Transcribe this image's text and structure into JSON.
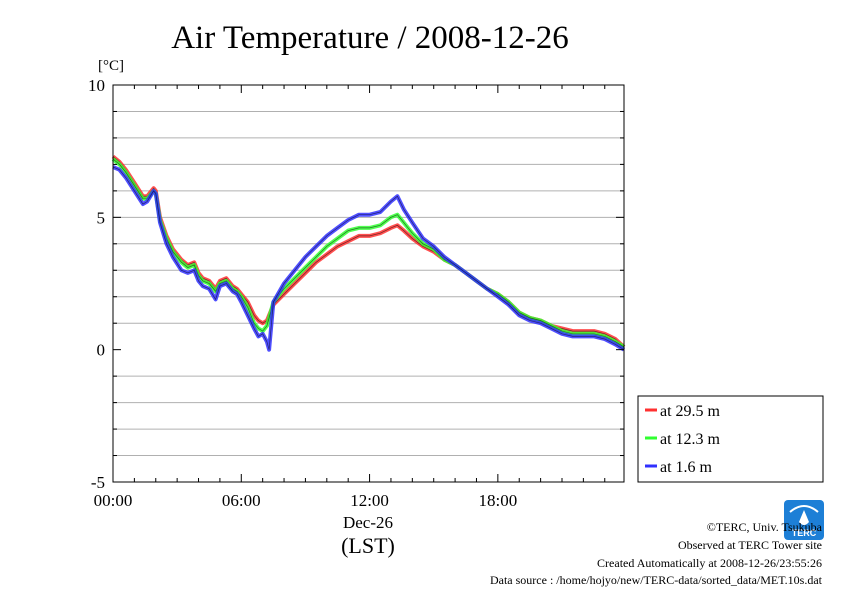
{
  "chart_data": {
    "type": "line",
    "title": "Air Temperature / 2008-12-26",
    "ylabel": "[°C]",
    "xlabel_date": "Dec-26",
    "xlabel_tz": "(LST)",
    "xlim_hours": [
      0,
      23.9
    ],
    "ylim": [
      -5,
      10
    ],
    "y_ticks": [
      10,
      5,
      0,
      -5
    ],
    "y_tick_labels": [
      "10",
      "5",
      "0",
      "-5"
    ],
    "x_ticks": [
      0,
      6,
      12,
      18
    ],
    "x_tick_labels": [
      "00:00",
      "06:00",
      "12:00",
      "18:00"
    ],
    "y_gridlines": [
      -4,
      -3,
      -2,
      -1,
      1,
      2,
      3,
      4,
      5,
      6,
      7,
      8,
      9
    ],
    "legend_position": "right-bottom",
    "series": [
      {
        "name": "at 29.5 m",
        "color": "#ff3030",
        "x": [
          0,
          0.3,
          0.6,
          1.0,
          1.4,
          1.6,
          1.9,
          2.0,
          2.2,
          2.5,
          2.8,
          3.2,
          3.5,
          3.8,
          4.0,
          4.2,
          4.5,
          4.8,
          5.0,
          5.3,
          5.6,
          5.8,
          6.0,
          6.3,
          6.6,
          6.8,
          7.0,
          7.2,
          7.3,
          7.5,
          8.0,
          8.5,
          9.0,
          9.5,
          10.0,
          10.5,
          11.0,
          11.5,
          12.0,
          12.5,
          13.0,
          13.3,
          13.6,
          14.0,
          14.5,
          15.0,
          15.5,
          16.0,
          16.5,
          17.0,
          17.5,
          18.0,
          18.5,
          19.0,
          19.5,
          20.0,
          20.5,
          21.0,
          21.5,
          22.0,
          22.5,
          23.0,
          23.5,
          23.9
        ],
        "y": [
          7.3,
          7.1,
          6.8,
          6.3,
          5.8,
          5.8,
          6.1,
          6.0,
          5.0,
          4.3,
          3.8,
          3.4,
          3.2,
          3.3,
          2.9,
          2.7,
          2.6,
          2.3,
          2.6,
          2.7,
          2.4,
          2.3,
          2.1,
          1.8,
          1.3,
          1.1,
          1.0,
          1.1,
          1.3,
          1.7,
          2.1,
          2.5,
          2.9,
          3.3,
          3.6,
          3.9,
          4.1,
          4.3,
          4.3,
          4.4,
          4.6,
          4.7,
          4.5,
          4.2,
          3.9,
          3.7,
          3.4,
          3.2,
          2.9,
          2.6,
          2.3,
          2.1,
          1.8,
          1.4,
          1.2,
          1.1,
          0.9,
          0.8,
          0.7,
          0.7,
          0.7,
          0.6,
          0.4,
          0.1
        ]
      },
      {
        "name": "at 12.3 m",
        "color": "#30ff30",
        "x": [
          0,
          0.3,
          0.6,
          1.0,
          1.4,
          1.6,
          1.9,
          2.0,
          2.2,
          2.5,
          2.8,
          3.2,
          3.5,
          3.8,
          4.0,
          4.2,
          4.5,
          4.8,
          5.0,
          5.3,
          5.6,
          5.8,
          6.0,
          6.3,
          6.6,
          6.8,
          7.0,
          7.2,
          7.3,
          7.5,
          8.0,
          8.5,
          9.0,
          9.5,
          10.0,
          10.5,
          11.0,
          11.5,
          12.0,
          12.5,
          13.0,
          13.3,
          13.6,
          14.0,
          14.5,
          15.0,
          15.5,
          16.0,
          16.5,
          17.0,
          17.5,
          18.0,
          18.5,
          19.0,
          19.5,
          20.0,
          20.5,
          21.0,
          21.5,
          22.0,
          22.5,
          23.0,
          23.5,
          23.9
        ],
        "y": [
          7.2,
          7.0,
          6.7,
          6.2,
          5.7,
          5.7,
          6.0,
          5.9,
          4.9,
          4.2,
          3.7,
          3.3,
          3.1,
          3.2,
          2.8,
          2.6,
          2.5,
          2.2,
          2.5,
          2.6,
          2.3,
          2.2,
          2.0,
          1.6,
          1.0,
          0.8,
          0.7,
          0.9,
          1.2,
          1.8,
          2.3,
          2.7,
          3.1,
          3.5,
          3.9,
          4.2,
          4.5,
          4.6,
          4.6,
          4.7,
          5.0,
          5.1,
          4.8,
          4.4,
          4.0,
          3.8,
          3.4,
          3.2,
          2.9,
          2.6,
          2.3,
          2.1,
          1.8,
          1.4,
          1.2,
          1.1,
          0.9,
          0.7,
          0.6,
          0.6,
          0.6,
          0.5,
          0.3,
          0.1
        ]
      },
      {
        "name": "at 1.6 m",
        "color": "#3030ff",
        "x": [
          0,
          0.3,
          0.6,
          1.0,
          1.4,
          1.6,
          1.9,
          2.0,
          2.2,
          2.5,
          2.8,
          3.2,
          3.5,
          3.8,
          4.0,
          4.2,
          4.5,
          4.8,
          5.0,
          5.3,
          5.6,
          5.8,
          6.0,
          6.3,
          6.6,
          6.8,
          7.0,
          7.2,
          7.3,
          7.5,
          8.0,
          8.5,
          9.0,
          9.5,
          10.0,
          10.5,
          11.0,
          11.5,
          12.0,
          12.5,
          13.0,
          13.3,
          13.6,
          14.0,
          14.5,
          15.0,
          15.5,
          16.0,
          16.5,
          17.0,
          17.5,
          18.0,
          18.5,
          19.0,
          19.5,
          20.0,
          20.5,
          21.0,
          21.5,
          22.0,
          22.5,
          23.0,
          23.5,
          23.9
        ],
        "y": [
          6.9,
          6.8,
          6.5,
          6.0,
          5.5,
          5.6,
          6.0,
          5.9,
          4.8,
          4.0,
          3.5,
          3.0,
          2.9,
          3.0,
          2.6,
          2.4,
          2.3,
          1.9,
          2.4,
          2.5,
          2.2,
          2.1,
          1.8,
          1.3,
          0.8,
          0.5,
          0.6,
          0.3,
          0.0,
          1.8,
          2.5,
          3.0,
          3.5,
          3.9,
          4.3,
          4.6,
          4.9,
          5.1,
          5.1,
          5.2,
          5.6,
          5.8,
          5.3,
          4.8,
          4.2,
          3.9,
          3.5,
          3.2,
          2.9,
          2.6,
          2.3,
          2.0,
          1.7,
          1.3,
          1.1,
          1.0,
          0.8,
          0.6,
          0.5,
          0.5,
          0.5,
          0.4,
          0.2,
          0.0
        ]
      }
    ]
  },
  "credits": {
    "copyright": "©TERC, Univ. Tsukuba",
    "observed": "Observed at TERC Tower site",
    "created": "Created Automatically at 2008-12-26/23:55:26",
    "source": "Data source : /home/hojyo/new/TERC-data/sorted_data/MET.10s.dat"
  },
  "logo": {
    "text": "TERC",
    "color": "#1d7fd6"
  }
}
